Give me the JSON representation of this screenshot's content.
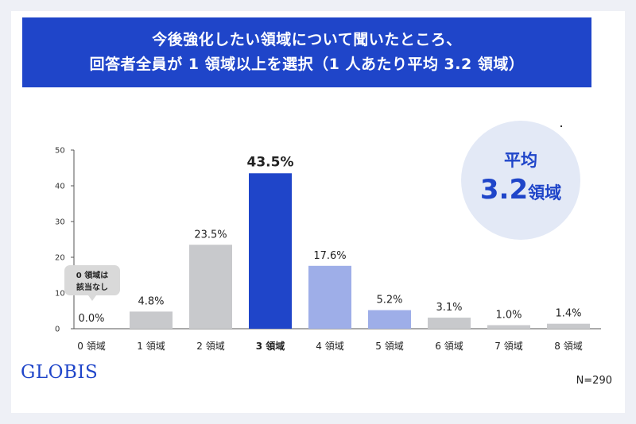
{
  "title": {
    "line1": "今後強化したい領域について聞いたところ、",
    "line2": "回答者全員が 1 領域以上を選択（1 人あたり平均 3.2 領域）"
  },
  "average": {
    "label": "平均",
    "value": "3.2",
    "unit": "領域"
  },
  "callout": {
    "line1": "0 領域は",
    "line2": "該当なし"
  },
  "logo": "GLOBIS",
  "sample_note": "N=290",
  "colors": {
    "accent": "#1f45c9",
    "highlight_bar": "#1f45c9",
    "secondary_bar": "#9eaee8",
    "neutral_bar": "#c8c9cc",
    "circle_bg": "#e3e9f6"
  },
  "chart_data": {
    "type": "bar",
    "categories": [
      "0 領域",
      "1 領域",
      "2 領域",
      "3 領域",
      "4 領域",
      "5 領域",
      "6 領域",
      "7 領域",
      "8 領域"
    ],
    "values": [
      0.0,
      4.8,
      23.5,
      43.5,
      17.6,
      5.2,
      3.1,
      1.0,
      1.4
    ],
    "value_labels": [
      "0.0%",
      "4.8%",
      "23.5%",
      "43.5%",
      "17.6%",
      "5.2%",
      "3.1%",
      "1.0%",
      "1.4%"
    ],
    "bar_colors": [
      "#c8c9cc",
      "#c8c9cc",
      "#c8c9cc",
      "#1f45c9",
      "#9eaee8",
      "#9eaee8",
      "#c8c9cc",
      "#c8c9cc",
      "#c8c9cc"
    ],
    "highlight_index": 3,
    "yticks": [
      0,
      10,
      20,
      30,
      40,
      50
    ],
    "ylim": [
      0,
      50
    ],
    "xlabel": "",
    "ylabel": "",
    "grid": false
  }
}
